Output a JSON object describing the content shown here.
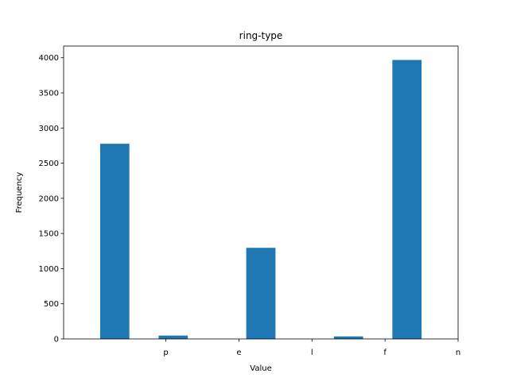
{
  "chart_data": {
    "type": "bar",
    "title": "ring-type",
    "xlabel": "Value",
    "ylabel": "Frequency",
    "x_tick_labels": [
      "p",
      "e",
      "l",
      "f",
      "n"
    ],
    "x_range": [
      -1.4,
      4.0
    ],
    "bars": [
      {
        "x_start": -0.9,
        "x_end": -0.5,
        "value": 2776
      },
      {
        "x_start": -0.1,
        "x_end": 0.3,
        "value": 48
      },
      {
        "x_start": 1.1,
        "x_end": 1.5,
        "value": 1296
      },
      {
        "x_start": 2.3,
        "x_end": 2.7,
        "value": 36
      },
      {
        "x_start": 3.1,
        "x_end": 3.5,
        "value": 3968
      }
    ],
    "ylim": [
      0,
      4166
    ],
    "y_ticks": [
      0,
      500,
      1000,
      1500,
      2000,
      2500,
      3000,
      3500,
      4000
    ],
    "bar_color": "#1f77b4",
    "grid": false,
    "legend": "none"
  }
}
